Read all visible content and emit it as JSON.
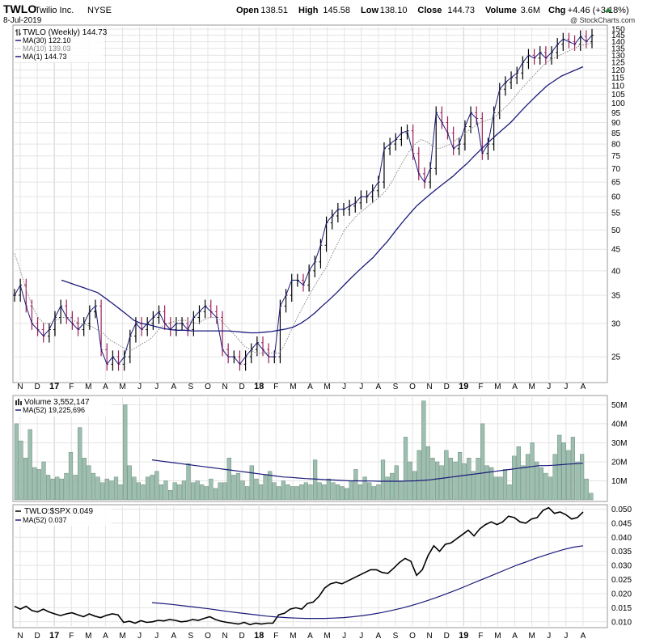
{
  "header": {
    "symbol": "TWLO",
    "company": "Twilio Inc.",
    "exchange": "NYSE",
    "date": "8-Jul-2019",
    "watermark": "@ StockCharts.com",
    "quote": [
      {
        "label": "Open",
        "value": "138.51"
      },
      {
        "label": "High",
        "value": "145.58"
      },
      {
        "label": "Low",
        "value": "138.10"
      },
      {
        "label": "Close",
        "value": "144.73"
      },
      {
        "label": "Volume",
        "value": "3.6M"
      },
      {
        "label": "Chg",
        "value": "+4.46 (+3.18%)"
      }
    ]
  },
  "colors": {
    "up": "#000000",
    "down": "#a0205a",
    "ma": "#1a1a7a",
    "volume_fill": "#9dbfb0",
    "volume_edge": "#5a7a6a",
    "grid": "#e4e4e4"
  },
  "chart_data": [
    {
      "type": "candlestick",
      "legend": [
        {
          "text": "TWLO (Weekly) 144.73",
          "icon": "ohlc-icon"
        },
        {
          "text": "MA(30) 122.10",
          "style": "solid"
        },
        {
          "text": "MA(10) 139.03",
          "style": "dotted"
        },
        {
          "text": "MA(1) 144.73",
          "style": "solid"
        }
      ],
      "y_scale": "log",
      "ylim": [
        22,
        152
      ],
      "y_ticks": [
        25,
        30,
        35,
        40,
        45,
        50,
        55,
        60,
        65,
        70,
        75,
        80,
        85,
        90,
        95,
        100,
        105,
        110,
        115,
        120,
        125,
        130,
        135,
        140,
        145,
        150
      ],
      "grid": true,
      "close_weekly": [
        35,
        37,
        33,
        30,
        29,
        28,
        29,
        31,
        33,
        31,
        30,
        29,
        30,
        32,
        33,
        26,
        24,
        25,
        24,
        25,
        28,
        30,
        29,
        30,
        31,
        32,
        30,
        29,
        30,
        30,
        29,
        31,
        32,
        33,
        32,
        31,
        26,
        25,
        25,
        24,
        25,
        26,
        27,
        26,
        25,
        25,
        33,
        35,
        38,
        38,
        37,
        40,
        42,
        46,
        52,
        54,
        56,
        56,
        57,
        58,
        60,
        60,
        62,
        65,
        78,
        80,
        82,
        85,
        86,
        76,
        68,
        65,
        70,
        95,
        90,
        85,
        78,
        80,
        88,
        95,
        92,
        76,
        80,
        95,
        108,
        112,
        115,
        118,
        125,
        130,
        128,
        132,
        128,
        132,
        138,
        142,
        140,
        138,
        144,
        140,
        145
      ],
      "ma30": [
        38,
        37.5,
        37,
        36.5,
        36,
        35.5,
        34.5,
        33.5,
        32.5,
        31.5,
        30.5,
        30,
        29.8,
        29.5,
        29.2,
        29,
        28.9,
        28.9,
        28.8,
        28.8,
        28.8,
        28.8,
        28.8,
        28.8,
        28.7,
        28.6,
        28.5,
        28.5,
        28.6,
        28.7,
        28.9,
        29.1,
        29.4,
        30,
        30.8,
        31.8,
        33,
        34.2,
        35.5,
        37,
        38.5,
        40,
        41.5,
        43,
        45,
        47,
        49.5,
        52,
        54.5,
        57,
        59,
        61,
        63,
        65,
        67,
        69.5,
        72,
        75,
        78,
        81,
        84,
        87,
        90,
        94,
        98,
        102,
        106,
        110,
        113,
        116,
        118,
        120,
        122.1
      ],
      "ma10": [
        44,
        40,
        36,
        33,
        31,
        30,
        30,
        30.5,
        31,
        31,
        30.5,
        30,
        29.8,
        29.5,
        29,
        28.5,
        27.5,
        27,
        26.5,
        26,
        26,
        26.5,
        27,
        27.5,
        28.5,
        29.5,
        30,
        30.3,
        30.5,
        30.5,
        30.2,
        30,
        30.5,
        31,
        31,
        30.5,
        29.5,
        28.5,
        27.5,
        26.5,
        26,
        25.5,
        25.5,
        25.5,
        25.5,
        25.5,
        27,
        29,
        31,
        33,
        35,
        37,
        39,
        41,
        44,
        47,
        50,
        52,
        54,
        55.5,
        57,
        58.5,
        60,
        62,
        65,
        69,
        73,
        77,
        80,
        82,
        81,
        79,
        78,
        79,
        80,
        82,
        84,
        86,
        88,
        90,
        91,
        92,
        94,
        97,
        100,
        104,
        108,
        112,
        116,
        120,
        124,
        127,
        129,
        131,
        133,
        135,
        137,
        138,
        139.03
      ]
    },
    {
      "type": "bar",
      "legend": [
        {
          "text": "Volume 3,552,147"
        },
        {
          "text": "MA(52) 19,225,696"
        }
      ],
      "y_ticks": [
        {
          "value": 10,
          "label": "10M"
        },
        {
          "value": 20,
          "label": "20M"
        },
        {
          "value": 30,
          "label": "30M"
        },
        {
          "value": 40,
          "label": "40M"
        },
        {
          "value": 50,
          "label": "50M"
        }
      ],
      "ylim": [
        0,
        54
      ],
      "values_millions": [
        40,
        31,
        22,
        37,
        17,
        16,
        20,
        13,
        11,
        12,
        11,
        14,
        25,
        13,
        38,
        22,
        18,
        14,
        12,
        9,
        11,
        10,
        12,
        8,
        50,
        18,
        12,
        9,
        8,
        12,
        13,
        15,
        8,
        10,
        5,
        9,
        8,
        10,
        19,
        9,
        10,
        8,
        7,
        11,
        6,
        9,
        9,
        22,
        13,
        14,
        10,
        7,
        18,
        11,
        8,
        13,
        15,
        9,
        7,
        10,
        8,
        7,
        7,
        8,
        9,
        8,
        21,
        9,
        8,
        11,
        9,
        8,
        7,
        6,
        10,
        16,
        8,
        12,
        9,
        7,
        8,
        21,
        12,
        14,
        18,
        10,
        33,
        20,
        15,
        26,
        52,
        28,
        22,
        20,
        18,
        26,
        22,
        20,
        25,
        19,
        22,
        15,
        22,
        40,
        18,
        17,
        12,
        12,
        16,
        8,
        23,
        28,
        18,
        24,
        30,
        20,
        17,
        14,
        12,
        24,
        34,
        30,
        26,
        33,
        20,
        24,
        11,
        3.5
      ],
      "ma52_millions": [
        21,
        20.5,
        20,
        19.5,
        19,
        18.5,
        18,
        17.5,
        17,
        16.5,
        16,
        15.5,
        15,
        14.5,
        14,
        13.5,
        13,
        12.5,
        12,
        11.8,
        11.5,
        11.2,
        11,
        10.8,
        10.6,
        10.4,
        10.2,
        10,
        10,
        9.9,
        9.9,
        9.8,
        9.8,
        9.8,
        9.8,
        9.9,
        10,
        10.2,
        10.5,
        11,
        11.5,
        12,
        12.5,
        13,
        13.5,
        14,
        14.5,
        15,
        15.5,
        16,
        16.5,
        17,
        17.5,
        18,
        18,
        18.2,
        18.5,
        18.8,
        19,
        19.225696
      ]
    },
    {
      "type": "line",
      "legend": [
        {
          "text": "TWLO:$SPX 0.049"
        },
        {
          "text": "MA(52) 0.037"
        }
      ],
      "ylim": [
        0.0085,
        0.051
      ],
      "y_ticks": [
        "0.050",
        "0.045",
        "0.040",
        "0.035",
        "0.030",
        "0.025",
        "0.020",
        "0.015",
        "0.010"
      ],
      "ratio": [
        0.0155,
        0.0145,
        0.0155,
        0.014,
        0.0135,
        0.0145,
        0.0135,
        0.0128,
        0.0122,
        0.0128,
        0.0132,
        0.0125,
        0.0118,
        0.0128,
        0.012,
        0.0115,
        0.0123,
        0.0128,
        0.0125,
        0.0098,
        0.0102,
        0.0095,
        0.0104,
        0.0098,
        0.01,
        0.0105,
        0.0103,
        0.0108,
        0.0105,
        0.01,
        0.0102,
        0.0108,
        0.0105,
        0.0112,
        0.0118,
        0.0108,
        0.0102,
        0.0098,
        0.0095,
        0.0092,
        0.0098,
        0.009,
        0.0095,
        0.0092,
        0.0095,
        0.0095,
        0.0125,
        0.013,
        0.0145,
        0.015,
        0.0145,
        0.0165,
        0.017,
        0.019,
        0.022,
        0.0235,
        0.024,
        0.0235,
        0.0245,
        0.0255,
        0.0265,
        0.0275,
        0.0285,
        0.0285,
        0.0275,
        0.0272,
        0.029,
        0.031,
        0.0325,
        0.0315,
        0.0265,
        0.0285,
        0.0335,
        0.037,
        0.035,
        0.0375,
        0.038,
        0.0395,
        0.041,
        0.0425,
        0.0405,
        0.043,
        0.0445,
        0.0455,
        0.0445,
        0.0455,
        0.0475,
        0.047,
        0.0455,
        0.045,
        0.0465,
        0.047,
        0.0495,
        0.0505,
        0.0485,
        0.049,
        0.048,
        0.0465,
        0.047,
        0.049
      ],
      "ma52": [
        0.0168,
        0.0165,
        0.0162,
        0.0158,
        0.0154,
        0.015,
        0.0146,
        0.0141,
        0.0136,
        0.0132,
        0.0128,
        0.0124,
        0.012,
        0.0117,
        0.0115,
        0.0113,
        0.0112,
        0.0112,
        0.0112,
        0.0113,
        0.0115,
        0.0118,
        0.0122,
        0.0127,
        0.0133,
        0.014,
        0.0148,
        0.0157,
        0.0167,
        0.0178,
        0.019,
        0.0203,
        0.0216,
        0.023,
        0.0244,
        0.0258,
        0.0272,
        0.0286,
        0.03,
        0.0312,
        0.0325,
        0.0336,
        0.0347,
        0.0357,
        0.0365,
        0.037
      ]
    }
  ],
  "x_axis": {
    "labels": [
      "N",
      "D",
      "17",
      "F",
      "M",
      "A",
      "M",
      "J",
      "J",
      "A",
      "S",
      "O",
      "N",
      "D",
      "18",
      "F",
      "M",
      "A",
      "M",
      "J",
      "J",
      "A",
      "S",
      "O",
      "N",
      "D",
      "19",
      "F",
      "M",
      "A",
      "M",
      "J",
      "J",
      "A"
    ],
    "year_labels": [
      "17",
      "18",
      "19"
    ]
  }
}
